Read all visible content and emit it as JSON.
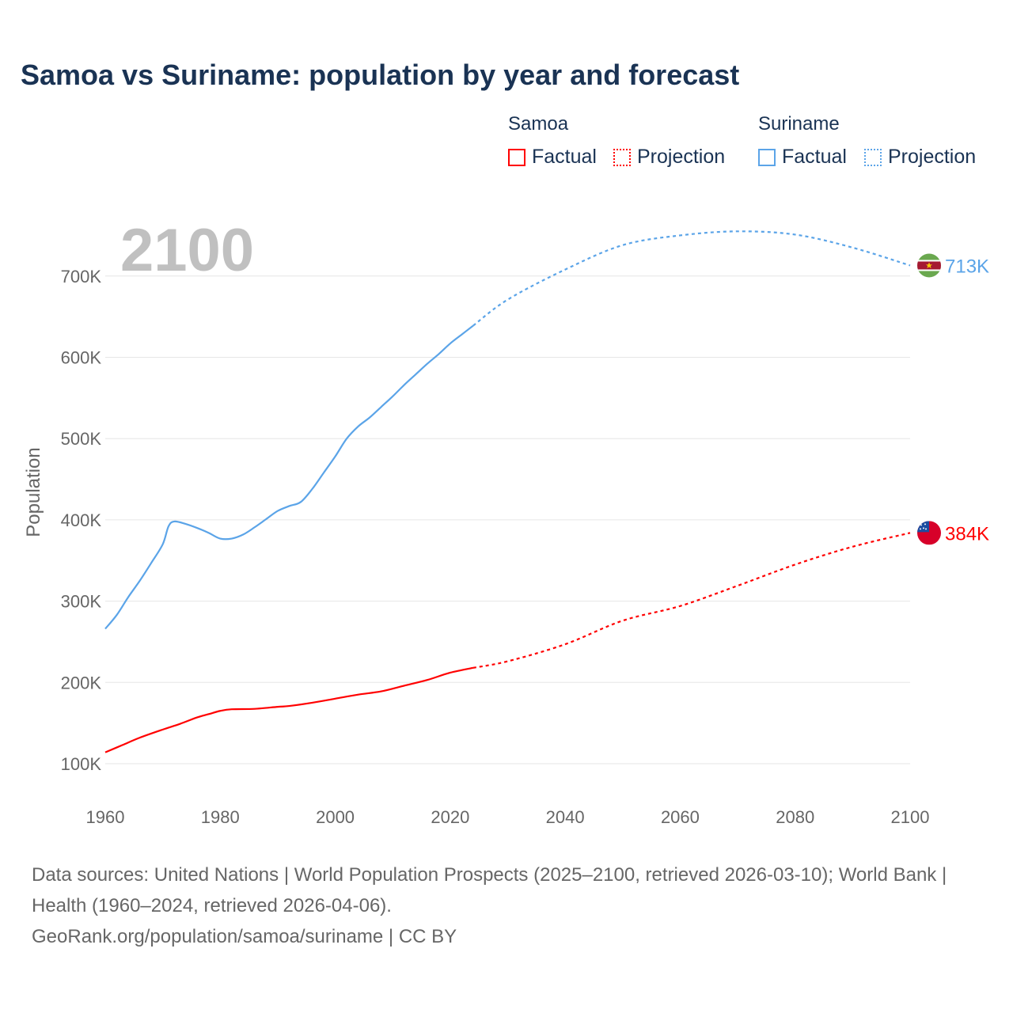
{
  "title": "Samoa vs Suriname: population by year and forecast",
  "legend": {
    "groups": [
      {
        "name": "Samoa",
        "color": "#ff0000",
        "factual": "Factual",
        "projection": "Projection"
      },
      {
        "name": "Suriname",
        "color": "#5ba4e8",
        "factual": "Factual",
        "projection": "Projection"
      }
    ]
  },
  "year_overlay": "2100",
  "footer": {
    "sources": "Data sources: United Nations | World Population Prospects (2025–2100, retrieved 2026-03-10); World Bank | Health (1960–2024, retrieved 2026-04-06).",
    "credit": "GeoRank.org/population/samoa/suriname | CC BY"
  },
  "chart_data": {
    "type": "line",
    "title": "Samoa vs Suriname: population by year and forecast",
    "xlabel": "",
    "ylabel": "Population",
    "xlim": [
      1960,
      2100
    ],
    "ylim": [
      100,
      740
    ],
    "x_ticks": [
      1960,
      1980,
      2000,
      2020,
      2040,
      2060,
      2080,
      2100
    ],
    "x_tick_labels": [
      "1960",
      "1980",
      "2000",
      "2020",
      "2040",
      "2060",
      "2080",
      "2100"
    ],
    "y_ticks": [
      100,
      200,
      300,
      400,
      500,
      600,
      700
    ],
    "y_tick_labels": [
      "100K",
      "200K",
      "300K",
      "400K",
      "500K",
      "600K",
      "700K"
    ],
    "y_unit": "thousands",
    "grid": "horizontal",
    "legend_position": "top-right",
    "series": [
      {
        "name": "Suriname",
        "color": "#5ba4e8",
        "end_label": "713K",
        "factual": [
          [
            1960,
            266
          ],
          [
            1962,
            283
          ],
          [
            1964,
            305
          ],
          [
            1966,
            325
          ],
          [
            1968,
            347
          ],
          [
            1970,
            370
          ],
          [
            1971,
            392
          ],
          [
            1972,
            398
          ],
          [
            1974,
            395
          ],
          [
            1976,
            390
          ],
          [
            1978,
            384
          ],
          [
            1980,
            377
          ],
          [
            1982,
            377
          ],
          [
            1984,
            382
          ],
          [
            1986,
            391
          ],
          [
            1988,
            401
          ],
          [
            1990,
            411
          ],
          [
            1992,
            417
          ],
          [
            1994,
            422
          ],
          [
            1996,
            438
          ],
          [
            1998,
            458
          ],
          [
            2000,
            478
          ],
          [
            2002,
            500
          ],
          [
            2004,
            515
          ],
          [
            2006,
            526
          ],
          [
            2008,
            539
          ],
          [
            2010,
            552
          ],
          [
            2012,
            566
          ],
          [
            2014,
            579
          ],
          [
            2016,
            592
          ],
          [
            2018,
            604
          ],
          [
            2020,
            617
          ],
          [
            2022,
            628
          ],
          [
            2024,
            639
          ]
        ],
        "projection": [
          [
            2024,
            639
          ],
          [
            2030,
            671
          ],
          [
            2040,
            708
          ],
          [
            2050,
            738
          ],
          [
            2060,
            750
          ],
          [
            2070,
            755
          ],
          [
            2080,
            751
          ],
          [
            2090,
            735
          ],
          [
            2100,
            713
          ]
        ]
      },
      {
        "name": "Samoa",
        "color": "#ff0000",
        "end_label": "384K",
        "factual": [
          [
            1960,
            114
          ],
          [
            1963,
            123
          ],
          [
            1966,
            132
          ],
          [
            1970,
            142
          ],
          [
            1973,
            149
          ],
          [
            1976,
            157
          ],
          [
            1978,
            161
          ],
          [
            1980,
            165
          ],
          [
            1982,
            167
          ],
          [
            1986,
            167.5
          ],
          [
            1990,
            170
          ],
          [
            1992,
            171
          ],
          [
            1996,
            175
          ],
          [
            2000,
            180
          ],
          [
            2004,
            185
          ],
          [
            2008,
            189
          ],
          [
            2012,
            196
          ],
          [
            2016,
            203
          ],
          [
            2020,
            212
          ],
          [
            2024,
            218
          ]
        ],
        "projection": [
          [
            2024,
            218
          ],
          [
            2030,
            226
          ],
          [
            2040,
            247
          ],
          [
            2050,
            276
          ],
          [
            2060,
            294
          ],
          [
            2070,
            319
          ],
          [
            2080,
            345
          ],
          [
            2090,
            367
          ],
          [
            2100,
            384
          ]
        ]
      }
    ]
  }
}
